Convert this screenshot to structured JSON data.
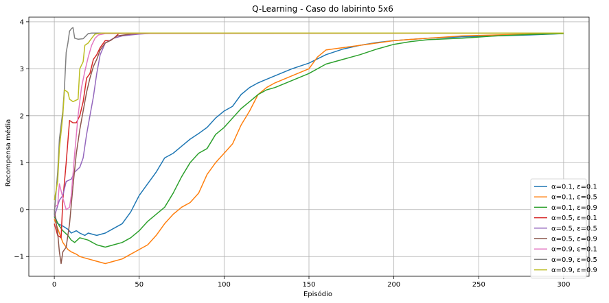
{
  "chart_data": {
    "type": "line",
    "title": "Q-Learning - Caso do labirinto 5x6",
    "xlabel": "Episódio",
    "ylabel": "Recompensa média",
    "xlim": [
      -15,
      315
    ],
    "ylim": [
      -1.42,
      4.1
    ],
    "xticks": [
      0,
      50,
      100,
      150,
      200,
      250,
      300
    ],
    "yticks": [
      -1,
      0,
      1,
      2,
      3,
      4
    ],
    "grid": true,
    "legend_position": "lower-right",
    "series": [
      {
        "name": "α=0.1, ε=0.1",
        "color": "#1f77b4",
        "points": [
          [
            0,
            -0.1
          ],
          [
            2,
            -0.3
          ],
          [
            5,
            -0.35
          ],
          [
            8,
            -0.42
          ],
          [
            10,
            -0.5
          ],
          [
            13,
            -0.45
          ],
          [
            15,
            -0.5
          ],
          [
            18,
            -0.55
          ],
          [
            20,
            -0.5
          ],
          [
            25,
            -0.55
          ],
          [
            30,
            -0.5
          ],
          [
            35,
            -0.4
          ],
          [
            40,
            -0.3
          ],
          [
            45,
            -0.05
          ],
          [
            50,
            0.3
          ],
          [
            55,
            0.55
          ],
          [
            60,
            0.8
          ],
          [
            65,
            1.1
          ],
          [
            70,
            1.2
          ],
          [
            75,
            1.35
          ],
          [
            80,
            1.5
          ],
          [
            85,
            1.62
          ],
          [
            90,
            1.75
          ],
          [
            95,
            1.95
          ],
          [
            100,
            2.1
          ],
          [
            105,
            2.2
          ],
          [
            110,
            2.45
          ],
          [
            115,
            2.6
          ],
          [
            120,
            2.7
          ],
          [
            130,
            2.85
          ],
          [
            140,
            3.0
          ],
          [
            150,
            3.12
          ],
          [
            160,
            3.3
          ],
          [
            170,
            3.42
          ],
          [
            180,
            3.5
          ],
          [
            190,
            3.56
          ],
          [
            200,
            3.6
          ],
          [
            220,
            3.65
          ],
          [
            240,
            3.68
          ],
          [
            260,
            3.7
          ],
          [
            280,
            3.72
          ],
          [
            300,
            3.75
          ]
        ]
      },
      {
        "name": "α=0.1, ε=0.5",
        "color": "#ff7f0e",
        "points": [
          [
            0,
            -0.2
          ],
          [
            3,
            -0.5
          ],
          [
            5,
            -0.7
          ],
          [
            8,
            -0.85
          ],
          [
            10,
            -0.9
          ],
          [
            13,
            -0.95
          ],
          [
            15,
            -1.0
          ],
          [
            18,
            -1.03
          ],
          [
            20,
            -1.05
          ],
          [
            25,
            -1.1
          ],
          [
            30,
            -1.15
          ],
          [
            35,
            -1.1
          ],
          [
            40,
            -1.05
          ],
          [
            45,
            -0.95
          ],
          [
            50,
            -0.85
          ],
          [
            55,
            -0.75
          ],
          [
            60,
            -0.55
          ],
          [
            65,
            -0.3
          ],
          [
            70,
            -0.1
          ],
          [
            75,
            0.05
          ],
          [
            80,
            0.15
          ],
          [
            85,
            0.35
          ],
          [
            90,
            0.75
          ],
          [
            95,
            1.0
          ],
          [
            100,
            1.2
          ],
          [
            105,
            1.4
          ],
          [
            110,
            1.8
          ],
          [
            115,
            2.1
          ],
          [
            120,
            2.45
          ],
          [
            125,
            2.6
          ],
          [
            130,
            2.7
          ],
          [
            140,
            2.85
          ],
          [
            150,
            3.0
          ],
          [
            155,
            3.25
          ],
          [
            160,
            3.4
          ],
          [
            170,
            3.45
          ],
          [
            180,
            3.5
          ],
          [
            190,
            3.55
          ],
          [
            200,
            3.6
          ],
          [
            220,
            3.65
          ],
          [
            240,
            3.7
          ],
          [
            260,
            3.72
          ],
          [
            280,
            3.74
          ],
          [
            300,
            3.75
          ]
        ]
      },
      {
        "name": "α=0.1, ε=0.9",
        "color": "#2ca02c",
        "points": [
          [
            0,
            -0.15
          ],
          [
            3,
            -0.35
          ],
          [
            5,
            -0.45
          ],
          [
            8,
            -0.55
          ],
          [
            10,
            -0.65
          ],
          [
            12,
            -0.7
          ],
          [
            15,
            -0.6
          ],
          [
            20,
            -0.65
          ],
          [
            25,
            -0.75
          ],
          [
            30,
            -0.8
          ],
          [
            35,
            -0.75
          ],
          [
            40,
            -0.7
          ],
          [
            45,
            -0.6
          ],
          [
            50,
            -0.45
          ],
          [
            55,
            -0.25
          ],
          [
            60,
            -0.1
          ],
          [
            65,
            0.05
          ],
          [
            70,
            0.35
          ],
          [
            75,
            0.7
          ],
          [
            80,
            1.0
          ],
          [
            85,
            1.2
          ],
          [
            90,
            1.3
          ],
          [
            95,
            1.6
          ],
          [
            100,
            1.75
          ],
          [
            105,
            1.95
          ],
          [
            110,
            2.15
          ],
          [
            115,
            2.3
          ],
          [
            120,
            2.45
          ],
          [
            125,
            2.55
          ],
          [
            130,
            2.6
          ],
          [
            140,
            2.75
          ],
          [
            150,
            2.9
          ],
          [
            160,
            3.1
          ],
          [
            170,
            3.2
          ],
          [
            180,
            3.3
          ],
          [
            190,
            3.42
          ],
          [
            200,
            3.52
          ],
          [
            210,
            3.58
          ],
          [
            220,
            3.62
          ],
          [
            240,
            3.65
          ],
          [
            260,
            3.7
          ],
          [
            280,
            3.73
          ],
          [
            300,
            3.75
          ]
        ]
      },
      {
        "name": "α=0.5, ε=0.1",
        "color": "#d62728",
        "points": [
          [
            0,
            -0.3
          ],
          [
            2,
            -0.55
          ],
          [
            4,
            -0.6
          ],
          [
            5,
            0.2
          ],
          [
            7,
            1.0
          ],
          [
            9,
            1.9
          ],
          [
            11,
            1.85
          ],
          [
            13,
            1.85
          ],
          [
            15,
            2.0
          ],
          [
            17,
            2.3
          ],
          [
            19,
            2.8
          ],
          [
            21,
            2.9
          ],
          [
            23,
            3.2
          ],
          [
            25,
            3.3
          ],
          [
            27,
            3.45
          ],
          [
            30,
            3.6
          ],
          [
            33,
            3.6
          ],
          [
            35,
            3.65
          ],
          [
            38,
            3.75
          ],
          [
            45,
            3.76
          ],
          [
            60,
            3.76
          ],
          [
            300,
            3.76
          ]
        ]
      },
      {
        "name": "α=0.5, ε=0.5",
        "color": "#9467bd",
        "points": [
          [
            0,
            -0.15
          ],
          [
            3,
            0.2
          ],
          [
            5,
            0.3
          ],
          [
            7,
            0.6
          ],
          [
            10,
            0.65
          ],
          [
            12,
            0.8
          ],
          [
            15,
            0.9
          ],
          [
            17,
            1.1
          ],
          [
            19,
            1.6
          ],
          [
            21,
            2.0
          ],
          [
            23,
            2.4
          ],
          [
            25,
            2.9
          ],
          [
            27,
            3.3
          ],
          [
            30,
            3.55
          ],
          [
            35,
            3.65
          ],
          [
            40,
            3.7
          ],
          [
            45,
            3.72
          ],
          [
            50,
            3.74
          ],
          [
            60,
            3.76
          ],
          [
            300,
            3.76
          ]
        ]
      },
      {
        "name": "α=0.5, ε=0.9",
        "color": "#8c564b",
        "points": [
          [
            0,
            0.0
          ],
          [
            2,
            -0.5
          ],
          [
            3,
            -0.9
          ],
          [
            4,
            -1.15
          ],
          [
            5,
            -0.9
          ],
          [
            7,
            -0.8
          ],
          [
            9,
            -0.3
          ],
          [
            11,
            0.5
          ],
          [
            13,
            1.2
          ],
          [
            15,
            1.7
          ],
          [
            17,
            2.1
          ],
          [
            19,
            2.5
          ],
          [
            21,
            2.8
          ],
          [
            23,
            3.05
          ],
          [
            25,
            3.2
          ],
          [
            27,
            3.4
          ],
          [
            30,
            3.55
          ],
          [
            33,
            3.6
          ],
          [
            37,
            3.7
          ],
          [
            45,
            3.74
          ],
          [
            55,
            3.76
          ],
          [
            300,
            3.76
          ]
        ]
      },
      {
        "name": "α=0.9, ε=0.1",
        "color": "#e377c2",
        "points": [
          [
            0,
            0.05
          ],
          [
            2,
            0.1
          ],
          [
            3,
            0.55
          ],
          [
            5,
            0.25
          ],
          [
            7,
            0.0
          ],
          [
            9,
            0.05
          ],
          [
            10,
            0.3
          ],
          [
            12,
            1.2
          ],
          [
            14,
            2.0
          ],
          [
            16,
            2.6
          ],
          [
            18,
            2.95
          ],
          [
            20,
            3.25
          ],
          [
            22,
            3.5
          ],
          [
            24,
            3.65
          ],
          [
            26,
            3.72
          ],
          [
            30,
            3.75
          ],
          [
            300,
            3.76
          ]
        ]
      },
      {
        "name": "α=0.9, ε=0.5",
        "color": "#7f7f7f",
        "points": [
          [
            0,
            -0.1
          ],
          [
            2,
            0.8
          ],
          [
            3,
            1.5
          ],
          [
            5,
            2.1
          ],
          [
            6,
            2.6
          ],
          [
            7,
            3.35
          ],
          [
            8,
            3.55
          ],
          [
            9,
            3.8
          ],
          [
            10,
            3.85
          ],
          [
            11,
            3.88
          ],
          [
            12,
            3.65
          ],
          [
            14,
            3.63
          ],
          [
            17,
            3.64
          ],
          [
            20,
            3.75
          ],
          [
            22,
            3.76
          ],
          [
            300,
            3.76
          ]
        ]
      },
      {
        "name": "α=0.9, ε=0.9",
        "color": "#bcbd22",
        "points": [
          [
            0,
            0.2
          ],
          [
            2,
            0.6
          ],
          [
            3,
            1.3
          ],
          [
            5,
            2.0
          ],
          [
            6,
            2.55
          ],
          [
            8,
            2.5
          ],
          [
            9,
            2.35
          ],
          [
            11,
            2.3
          ],
          [
            14,
            2.35
          ],
          [
            15,
            3.0
          ],
          [
            17,
            3.15
          ],
          [
            18,
            3.5
          ],
          [
            20,
            3.55
          ],
          [
            22,
            3.65
          ],
          [
            24,
            3.74
          ],
          [
            28,
            3.76
          ],
          [
            300,
            3.76
          ]
        ]
      }
    ]
  }
}
